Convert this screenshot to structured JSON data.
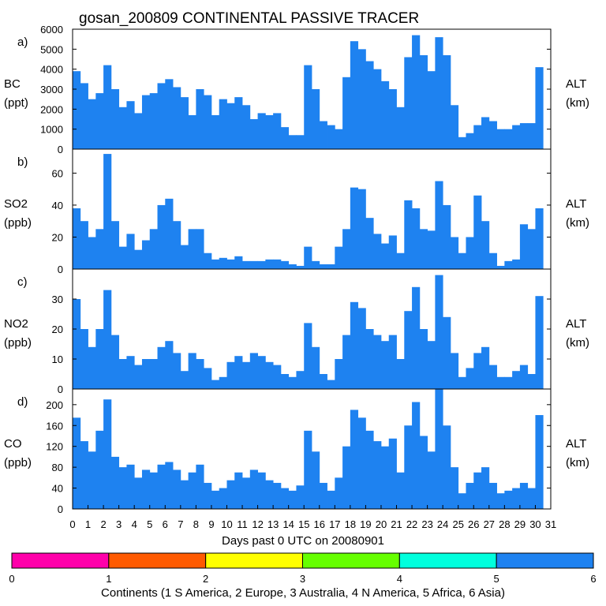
{
  "title": "gosan_200809 CONTINENTAL PASSIVE TRACER",
  "xlabel": "Days past 0 UTC on 20080901",
  "x_ticks": [
    "0",
    "1",
    "2",
    "3",
    "4",
    "5",
    "6",
    "7",
    "8",
    "9",
    "10",
    "11",
    "12",
    "13",
    "14",
    "15",
    "16",
    "17",
    "18",
    "19",
    "20",
    "21",
    "22",
    "23",
    "24",
    "25",
    "26",
    "27",
    "28",
    "29",
    "30",
    "31"
  ],
  "colorbar": {
    "label": "Continents (1 S America, 2 Europe, 3 Australia, 4 N America, 5 Africa, 6 Asia)",
    "ticks": [
      "0",
      "1",
      "2",
      "3",
      "4",
      "5",
      "6"
    ],
    "colors": [
      "#ff00aa",
      "#ff5a00",
      "#ffff00",
      "#66ff00",
      "#00ffdd",
      "#1e82f0"
    ]
  },
  "colors": {
    "asia": "#1e82f0",
    "europe": "#ff5a00",
    "australia": "#ffff00",
    "n_america": "#66ff00"
  },
  "chart_data": [
    {
      "type": "area",
      "panel_label": "a)",
      "ylabel_top": "BC",
      "ylabel_bottom": "(ppt)",
      "right_label_top": "ALT",
      "right_label_bottom": "(km)",
      "ylim": [
        0,
        6000
      ],
      "yticks": [
        0,
        1000,
        2000,
        3000,
        4000,
        5000,
        6000
      ],
      "ytick_labels": [
        "0",
        "1000",
        "2000",
        "3000",
        "4000",
        "5000",
        "6000"
      ],
      "x": [
        0,
        0.5,
        1,
        1.5,
        2,
        2.5,
        3,
        3.5,
        4,
        4.5,
        5,
        5.5,
        6,
        6.5,
        7,
        7.5,
        8,
        8.5,
        9,
        9.5,
        10,
        10.5,
        11,
        11.5,
        12,
        12.5,
        13,
        13.5,
        14,
        14.5,
        15,
        15.5,
        16,
        16.5,
        17,
        17.5,
        18,
        18.5,
        19,
        19.5,
        20,
        20.5,
        21,
        21.5,
        22,
        22.5,
        23,
        23.5,
        24,
        24.5,
        25,
        25.5,
        26,
        26.5,
        27,
        27.5,
        28,
        28.5,
        29,
        29.5,
        30
      ],
      "series": [
        {
          "values": [
            3900,
            3300,
            2500,
            2800,
            4200,
            3000,
            2100,
            2400,
            1800,
            2700,
            2800,
            3300,
            3500,
            3100,
            2600,
            1700,
            3000,
            2700,
            1700,
            2500,
            2300,
            2600,
            2200,
            1500,
            1800,
            1700,
            1800,
            1100,
            700,
            700,
            4200,
            3000,
            1400,
            1200,
            1000,
            3600,
            5400,
            5000,
            4400,
            4000,
            3400,
            3000,
            2100,
            4600,
            5700,
            4700,
            3900,
            5600,
            4700,
            2200,
            600,
            800,
            1200,
            1600,
            1400,
            1000,
            1000,
            1200,
            1300,
            1300,
            4100
          ]
        }
      ]
    },
    {
      "type": "area",
      "panel_label": "b)",
      "ylabel_top": "SO2",
      "ylabel_bottom": "(ppb)",
      "right_label_top": "ALT",
      "right_label_bottom": "(km)",
      "ylim": [
        0,
        75
      ],
      "yticks": [
        0,
        20,
        40,
        60
      ],
      "ytick_labels": [
        "0",
        "20",
        "40",
        "60"
      ],
      "x": [
        0,
        0.5,
        1,
        1.5,
        2,
        2.5,
        3,
        3.5,
        4,
        4.5,
        5,
        5.5,
        6,
        6.5,
        7,
        7.5,
        8,
        8.5,
        9,
        9.5,
        10,
        10.5,
        11,
        11.5,
        12,
        12.5,
        13,
        13.5,
        14,
        14.5,
        15,
        15.5,
        16,
        16.5,
        17,
        17.5,
        18,
        18.5,
        19,
        19.5,
        20,
        20.5,
        21,
        21.5,
        22,
        22.5,
        23,
        23.5,
        24,
        24.5,
        25,
        25.5,
        26,
        26.5,
        27,
        27.5,
        28,
        28.5,
        29,
        29.5,
        30
      ],
      "series": [
        {
          "values": [
            38,
            30,
            20,
            25,
            72,
            30,
            14,
            22,
            12,
            18,
            25,
            40,
            44,
            30,
            15,
            25,
            25,
            10,
            6,
            7,
            6,
            8,
            5,
            5,
            5,
            6,
            6,
            5,
            3,
            2,
            14,
            5,
            3,
            3,
            14,
            25,
            51,
            50,
            32,
            22,
            16,
            21,
            10,
            43,
            38,
            25,
            24,
            55,
            40,
            20,
            10,
            20,
            46,
            30,
            10,
            2,
            5,
            6,
            28,
            25,
            38
          ]
        }
      ]
    },
    {
      "type": "area",
      "panel_label": "c)",
      "ylabel_top": "NO2",
      "ylabel_bottom": "(ppb)",
      "right_label_top": "ALT",
      "right_label_bottom": "(km)",
      "ylim": [
        0,
        40
      ],
      "yticks": [
        0,
        10,
        20,
        30
      ],
      "ytick_labels": [
        "0",
        "10",
        "20",
        "30"
      ],
      "x": [
        0,
        0.5,
        1,
        1.5,
        2,
        2.5,
        3,
        3.5,
        4,
        4.5,
        5,
        5.5,
        6,
        6.5,
        7,
        7.5,
        8,
        8.5,
        9,
        9.5,
        10,
        10.5,
        11,
        11.5,
        12,
        12.5,
        13,
        13.5,
        14,
        14.5,
        15,
        15.5,
        16,
        16.5,
        17,
        17.5,
        18,
        18.5,
        19,
        19.5,
        20,
        20.5,
        21,
        21.5,
        22,
        22.5,
        23,
        23.5,
        24,
        24.5,
        25,
        25.5,
        26,
        26.5,
        27,
        27.5,
        28,
        28.5,
        29,
        29.5,
        30
      ],
      "series": [
        {
          "values": [
            30,
            20,
            14,
            20,
            33,
            18,
            10,
            11,
            8,
            10,
            10,
            14,
            16,
            12,
            6,
            12,
            10,
            7,
            3,
            4,
            9,
            11,
            9,
            12,
            11,
            9,
            8,
            5,
            4,
            6,
            22,
            14,
            5,
            3,
            10,
            18,
            29,
            27,
            20,
            18,
            16,
            18,
            10,
            26,
            34,
            20,
            16,
            38,
            24,
            12,
            4,
            7,
            12,
            14,
            8,
            4,
            4,
            6,
            8,
            5,
            31
          ]
        }
      ]
    },
    {
      "type": "area",
      "panel_label": "d)",
      "ylabel_top": "CO",
      "ylabel_bottom": "(ppb)",
      "right_label_top": "ALT",
      "right_label_bottom": "(km)",
      "ylim": [
        0,
        230
      ],
      "yticks": [
        0,
        40,
        80,
        120,
        160,
        200
      ],
      "ytick_labels": [
        "0",
        "40",
        "80",
        "120",
        "160",
        "200"
      ],
      "x": [
        0,
        0.5,
        1,
        1.5,
        2,
        2.5,
        3,
        3.5,
        4,
        4.5,
        5,
        5.5,
        6,
        6.5,
        7,
        7.5,
        8,
        8.5,
        9,
        9.5,
        10,
        10.5,
        11,
        11.5,
        12,
        12.5,
        13,
        13.5,
        14,
        14.5,
        15,
        15.5,
        16,
        16.5,
        17,
        17.5,
        18,
        18.5,
        19,
        19.5,
        20,
        20.5,
        21,
        21.5,
        22,
        22.5,
        23,
        23.5,
        24,
        24.5,
        25,
        25.5,
        26,
        26.5,
        27,
        27.5,
        28,
        28.5,
        29,
        29.5,
        30
      ],
      "series": [
        {
          "values": [
            175,
            130,
            110,
            150,
            210,
            100,
            80,
            85,
            60,
            75,
            70,
            85,
            90,
            75,
            55,
            70,
            85,
            50,
            35,
            40,
            55,
            70,
            60,
            75,
            70,
            55,
            50,
            40,
            35,
            45,
            150,
            110,
            50,
            35,
            60,
            120,
            190,
            175,
            150,
            130,
            120,
            135,
            70,
            160,
            205,
            140,
            110,
            230,
            160,
            80,
            30,
            50,
            70,
            80,
            50,
            30,
            35,
            40,
            50,
            40,
            180
          ]
        }
      ]
    }
  ]
}
